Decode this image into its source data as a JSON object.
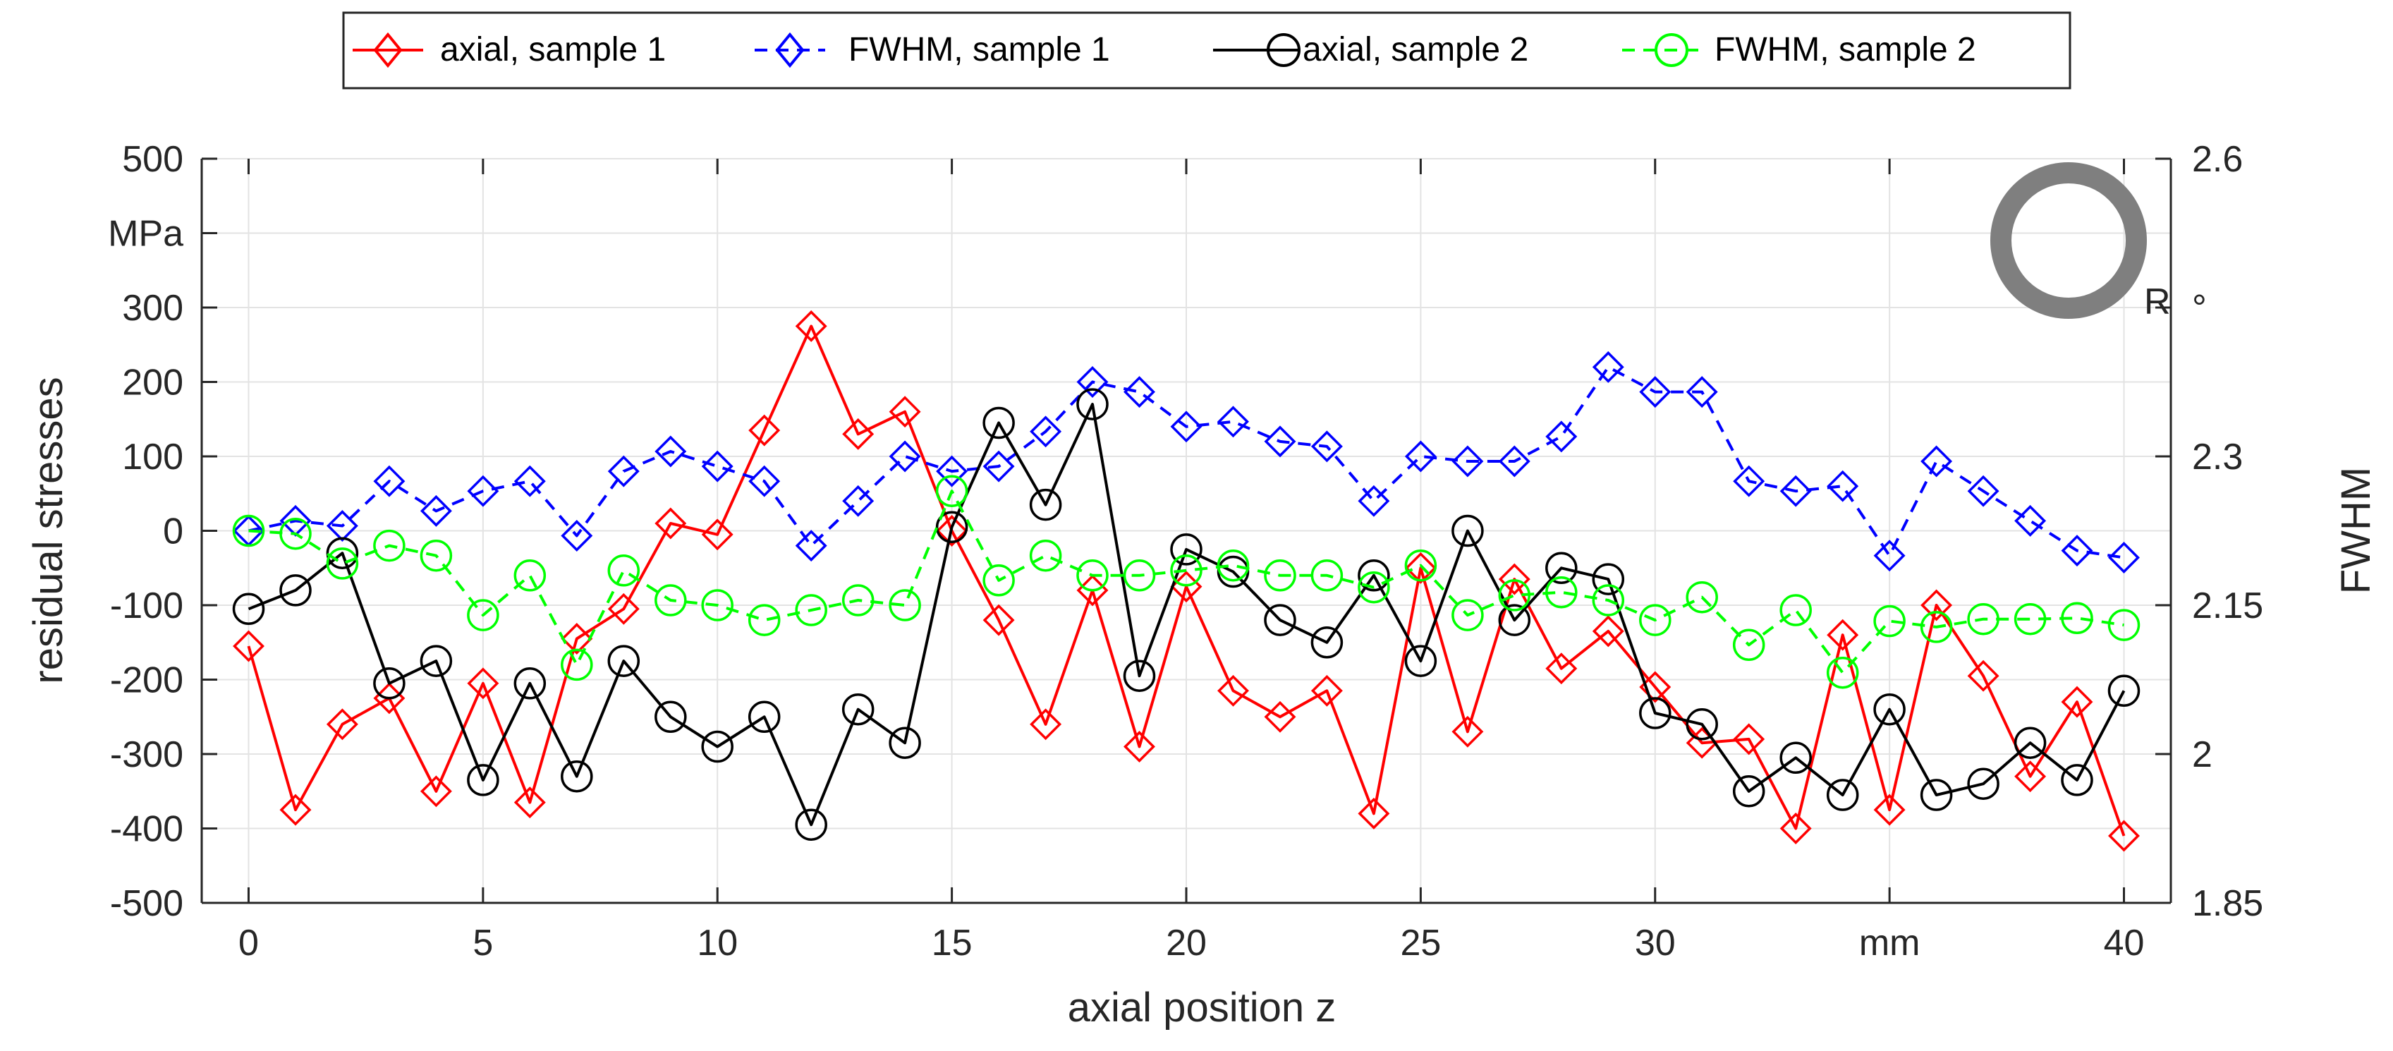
{
  "chart_data": {
    "type": "line",
    "xlabel": "axial position z",
    "ylabel": "residual stresses",
    "y2label": "FWHM",
    "x_unit_label": "mm",
    "y_unit_label": "MPa",
    "y2_unit_label": "°",
    "marker_label": "R",
    "xlim": [
      -1,
      41
    ],
    "ylim": [
      -500,
      500
    ],
    "y2lim": [
      1.85,
      2.6
    ],
    "x_ticks": [
      0,
      5,
      10,
      15,
      20,
      25,
      30,
      35,
      40
    ],
    "x_tick_labels": [
      "0",
      "5",
      "10",
      "15",
      "20",
      "25",
      "30",
      "mm",
      "40"
    ],
    "y_ticks": [
      -500,
      -400,
      -300,
      -200,
      -100,
      0,
      100,
      200,
      300,
      400,
      500
    ],
    "y_tick_labels": [
      "-500",
      "-400",
      "-300",
      "-200",
      "-100",
      "0",
      "100",
      "200",
      "300",
      "MPa",
      "500"
    ],
    "y2_ticks": [
      1.85,
      2.0,
      2.15,
      2.3,
      2.45,
      2.6
    ],
    "y2_tick_labels": [
      "1.85",
      "2",
      "2.15",
      "2.3",
      "°",
      "2.6"
    ],
    "grid": true,
    "legend_position": "top-center",
    "x": [
      0,
      1,
      2,
      3,
      4,
      5,
      6,
      7,
      8,
      9,
      10,
      11,
      12,
      13,
      14,
      15,
      16,
      17,
      18,
      19,
      20,
      21,
      22,
      23,
      24,
      25,
      26,
      27,
      28,
      29,
      30,
      31,
      32,
      33,
      34,
      35,
      36,
      37,
      38,
      39,
      40
    ],
    "series": [
      {
        "name": "axial, sample 1",
        "axis": "left",
        "color": "#ff0000",
        "marker": "diamond",
        "linestyle": "solid",
        "values": [
          -155,
          -375,
          -260,
          -225,
          -350,
          -205,
          -365,
          -145,
          -105,
          10,
          -5,
          135,
          275,
          130,
          160,
          0,
          -120,
          -260,
          -80,
          -290,
          -75,
          -215,
          -250,
          -215,
          -380,
          -50,
          -270,
          -65,
          -185,
          -135,
          -210,
          -285,
          -280,
          -400,
          -140,
          -375,
          -100,
          -195,
          -330,
          -230,
          -410
        ]
      },
      {
        "name": "FWHM, sample 1",
        "axis": "right",
        "color": "#0000ff",
        "marker": "diamond",
        "linestyle": "dashed",
        "values": [
          2.225,
          2.235,
          2.23,
          2.275,
          2.245,
          2.265,
          2.275,
          2.22,
          2.285,
          2.305,
          2.29,
          2.275,
          2.21,
          2.255,
          2.3,
          2.285,
          2.29,
          2.325,
          2.375,
          2.365,
          2.33,
          2.335,
          2.315,
          2.31,
          2.255,
          2.3,
          2.295,
          2.295,
          2.32,
          2.39,
          2.365,
          2.365,
          2.275,
          2.265,
          2.27,
          2.2,
          2.295,
          2.265,
          2.235,
          2.205,
          2.198
        ]
      },
      {
        "name": "axial, sample 2",
        "axis": "left",
        "color": "#000000",
        "marker": "circle",
        "linestyle": "solid",
        "values": [
          -105,
          -80,
          -30,
          -205,
          -175,
          -335,
          -205,
          -330,
          -175,
          -250,
          -290,
          -250,
          -395,
          -240,
          -285,
          5,
          145,
          35,
          170,
          -195,
          -25,
          -55,
          -120,
          -150,
          -60,
          -175,
          0,
          -120,
          -50,
          -65,
          -245,
          -260,
          -350,
          -305,
          -355,
          -240,
          -355,
          -340,
          -285,
          -335,
          -215
        ]
      },
      {
        "name": "FWHM, sample 2",
        "axis": "right",
        "color": "#00ff00",
        "marker": "circle",
        "linestyle": "dashed",
        "values": [
          2.225,
          2.222,
          2.192,
          2.21,
          2.2,
          2.14,
          2.18,
          2.09,
          2.185,
          2.155,
          2.15,
          2.135,
          2.145,
          2.155,
          2.15,
          2.265,
          2.175,
          2.2,
          2.18,
          2.18,
          2.185,
          2.19,
          2.18,
          2.18,
          2.168,
          2.19,
          2.14,
          2.16,
          2.163,
          2.155,
          2.135,
          2.158,
          2.11,
          2.145,
          2.082,
          2.134,
          2.128,
          2.136,
          2.136,
          2.137,
          2.13
        ]
      }
    ]
  }
}
